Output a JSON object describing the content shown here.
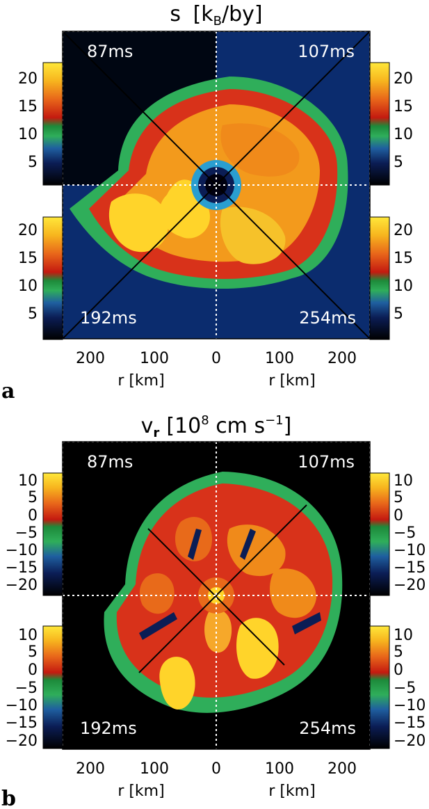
{
  "panels": [
    {
      "id": "a",
      "label": "a",
      "title_main": "s",
      "title_unit_open": "[k",
      "title_unit_sub": "B",
      "title_unit_rest": "/by]",
      "time_labels": [
        "87ms",
        "107ms",
        "192ms",
        "254ms"
      ],
      "colorbar_ticks": [
        "20",
        "15",
        "10",
        "5"
      ],
      "colorbar_range": [
        0,
        22
      ],
      "x_ticks": [
        "200",
        "100",
        "0",
        "100",
        "200"
      ],
      "x_labels": [
        "r [km]",
        "r [km]"
      ],
      "colormap": "black-blue-green-red-orange-yellow"
    },
    {
      "id": "b",
      "label": "b",
      "title_main": "v",
      "title_main_sub": "r",
      "title_unit_a": "[10",
      "title_unit_sup": "8",
      "title_unit_b": " cm s",
      "title_unit_sup2": "−1",
      "title_unit_c": "]",
      "time_labels": [
        "87ms",
        "107ms",
        "192ms",
        "254ms"
      ],
      "colorbar_ticks": [
        "10",
        "5",
        "0",
        "−5",
        "−10",
        "−15",
        "−20"
      ],
      "colorbar_range": [
        -21,
        12
      ],
      "x_ticks": [
        "200",
        "100",
        "0",
        "100",
        "200"
      ],
      "x_labels": [
        "r [km]",
        "r [km]"
      ],
      "colormap": "black-blue-green-red-orange-yellow"
    }
  ],
  "colors": {
    "background_outer": "#000011",
    "shell_blue": "#1a3a7a",
    "shell_green": "#2aa84a",
    "hot_red": "#d8321a",
    "hot_orange": "#f08a1a",
    "hot_yellow": "#ffd42a",
    "grid_white": "#ffffff"
  }
}
